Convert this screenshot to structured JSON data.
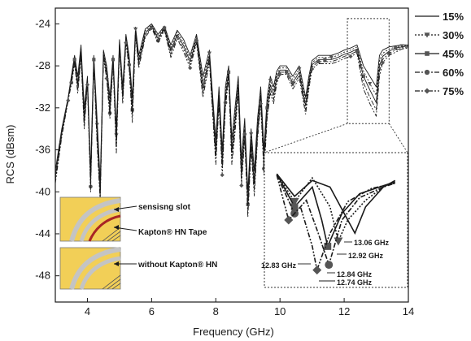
{
  "chart_data": {
    "type": "line",
    "title": "",
    "xlabel": "Frequency (GHz)",
    "ylabel": "RCS (dBsm)",
    "xlim": [
      3,
      14
    ],
    "ylim": [
      -50.5,
      -22.5
    ],
    "x_ticks": [
      4,
      6,
      8,
      10,
      12,
      14
    ],
    "y_ticks": [
      -24,
      -28,
      -32,
      -36,
      -40,
      -44,
      -48
    ],
    "grid": false,
    "legend_position": "top-right",
    "series": [
      {
        "name": "15%",
        "marker": "none",
        "dash": "solid",
        "x": [
          3.0,
          3.2,
          3.4,
          3.5,
          3.6,
          3.7,
          3.8,
          3.9,
          4.0,
          4.1,
          4.2,
          4.3,
          4.4,
          4.5,
          4.6,
          4.7,
          4.8,
          4.9,
          5.0,
          5.1,
          5.2,
          5.3,
          5.4,
          5.5,
          5.6,
          5.8,
          6.0,
          6.2,
          6.4,
          6.6,
          6.8,
          7.0,
          7.2,
          7.4,
          7.6,
          7.8,
          8.0,
          8.1,
          8.2,
          8.3,
          8.4,
          8.5,
          8.6,
          8.7,
          8.8,
          8.9,
          9.0,
          9.1,
          9.2,
          9.3,
          9.4,
          9.5,
          9.6,
          9.7,
          9.8,
          9.9,
          10.0,
          10.2,
          10.4,
          10.6,
          10.8,
          10.9,
          11.0,
          11.2,
          11.4,
          11.6,
          11.8,
          12.0,
          12.2,
          12.4,
          12.6,
          12.8,
          13.0,
          13.1,
          13.2,
          13.4,
          13.6,
          13.8,
          14.0
        ],
        "y": [
          -38,
          -34,
          -31,
          -29,
          -27,
          -29,
          -26,
          -32,
          -29,
          -38,
          -27,
          -33,
          -39,
          -26.5,
          -28,
          -31,
          -27,
          -34,
          -25.5,
          -30,
          -25,
          -27,
          -31,
          -24.3,
          -27,
          -24.5,
          -24,
          -25,
          -24.2,
          -26,
          -24.6,
          -25.5,
          -27,
          -25,
          -29,
          -26.5,
          -35,
          -30,
          -36,
          -30,
          -28,
          -35,
          -32,
          -29,
          -37,
          -33,
          -40,
          -34,
          -38,
          -33,
          -30,
          -36,
          -31,
          -29,
          -30,
          -28.5,
          -28,
          -28,
          -29,
          -28,
          -31,
          -29,
          -27.5,
          -27,
          -27,
          -27,
          -26.8,
          -26.5,
          -26.3,
          -26,
          -28,
          -29,
          -30,
          -27,
          -26.5,
          -26.2,
          -26.1,
          -26.0,
          -26.0
        ]
      },
      {
        "name": "30%",
        "marker": "triangle-down",
        "dash": "dot",
        "x": [
          3.0,
          3.2,
          3.4,
          3.5,
          3.6,
          3.7,
          3.8,
          3.9,
          4.0,
          4.1,
          4.2,
          4.3,
          4.4,
          4.5,
          4.6,
          4.7,
          4.8,
          4.9,
          5.0,
          5.1,
          5.2,
          5.3,
          5.4,
          5.5,
          5.6,
          5.8,
          6.0,
          6.2,
          6.4,
          6.6,
          6.8,
          7.0,
          7.2,
          7.4,
          7.6,
          7.8,
          8.0,
          8.1,
          8.2,
          8.3,
          8.4,
          8.5,
          8.6,
          8.7,
          8.8,
          8.9,
          9.0,
          9.1,
          9.2,
          9.3,
          9.4,
          9.5,
          9.6,
          9.7,
          9.8,
          9.9,
          10.0,
          10.2,
          10.4,
          10.6,
          10.8,
          10.9,
          11.0,
          11.2,
          11.4,
          11.6,
          11.8,
          12.0,
          12.2,
          12.4,
          12.6,
          12.8,
          13.0,
          13.1,
          13.2,
          13.4,
          13.6,
          13.8,
          14.0
        ],
        "y": [
          -38.3,
          -34.2,
          -31,
          -29.2,
          -27.2,
          -29.4,
          -26.3,
          -32.5,
          -29.2,
          -38.5,
          -27.2,
          -33.6,
          -39.5,
          -26.7,
          -28.3,
          -31.5,
          -27.2,
          -34.6,
          -25.7,
          -30.4,
          -25.2,
          -27.3,
          -31.6,
          -24.5,
          -27.3,
          -24.7,
          -24.1,
          -25.2,
          -24.3,
          -26.3,
          -24.8,
          -25.8,
          -27.3,
          -25.2,
          -29.5,
          -26.8,
          -35.6,
          -30.4,
          -36.6,
          -30.5,
          -28.3,
          -35.6,
          -32.6,
          -29.4,
          -37.6,
          -33.5,
          -40.6,
          -34.5,
          -38.6,
          -33.5,
          -30.4,
          -36.6,
          -31.5,
          -29.4,
          -30.4,
          -28.8,
          -28.2,
          -28.2,
          -29.3,
          -28.3,
          -31.4,
          -29.3,
          -27.7,
          -27.2,
          -27.2,
          -27.2,
          -27.0,
          -26.7,
          -26.5,
          -26.2,
          -28.5,
          -29.7,
          -30.8,
          -27.5,
          -26.8,
          -26.4,
          -26.2,
          -26.1,
          -26.0
        ]
      },
      {
        "name": "45%",
        "marker": "square",
        "dash": "solid",
        "x": [
          3.0,
          3.2,
          3.4,
          3.5,
          3.6,
          3.7,
          3.8,
          3.9,
          4.0,
          4.1,
          4.2,
          4.3,
          4.4,
          4.5,
          4.6,
          4.7,
          4.8,
          4.9,
          5.0,
          5.1,
          5.2,
          5.3,
          5.4,
          5.5,
          5.6,
          5.8,
          6.0,
          6.2,
          6.4,
          6.6,
          6.8,
          7.0,
          7.2,
          7.4,
          7.6,
          7.8,
          8.0,
          8.1,
          8.2,
          8.3,
          8.4,
          8.5,
          8.6,
          8.7,
          8.8,
          8.9,
          9.0,
          9.1,
          9.2,
          9.3,
          9.4,
          9.5,
          9.6,
          9.7,
          9.8,
          9.9,
          10.0,
          10.2,
          10.4,
          10.6,
          10.8,
          10.9,
          11.0,
          11.2,
          11.4,
          11.6,
          11.8,
          12.0,
          12.2,
          12.4,
          12.6,
          12.8,
          13.0,
          13.1,
          13.2,
          13.4,
          13.6,
          13.8,
          14.0
        ],
        "y": [
          -38.6,
          -34.4,
          -31.1,
          -29.4,
          -27.4,
          -29.8,
          -26.6,
          -33,
          -29.4,
          -39,
          -27.4,
          -34.2,
          -40,
          -26.9,
          -28.6,
          -32,
          -27.4,
          -35.2,
          -25.9,
          -30.8,
          -25.4,
          -27.6,
          -32.2,
          -24.7,
          -27.6,
          -24.9,
          -24.2,
          -25.4,
          -24.4,
          -26.6,
          -25,
          -26.1,
          -27.6,
          -25.4,
          -30,
          -27.1,
          -36.2,
          -30.8,
          -37.2,
          -31,
          -28.6,
          -36.2,
          -33.2,
          -29.8,
          -38.2,
          -34,
          -41.2,
          -35,
          -39.2,
          -34,
          -30.8,
          -37.2,
          -32,
          -29.8,
          -30.8,
          -29.1,
          -28.4,
          -28.4,
          -29.6,
          -28.6,
          -31.8,
          -29.6,
          -27.9,
          -27.4,
          -27.4,
          -27.4,
          -27.2,
          -26.9,
          -26.7,
          -26.4,
          -29.0,
          -30.3,
          -31.5,
          -28.0,
          -27.1,
          -26.6,
          -26.3,
          -26.2,
          -26.1
        ]
      },
      {
        "name": "60%",
        "marker": "circle",
        "dash": "dashdot",
        "x": [
          3.0,
          3.2,
          3.4,
          3.5,
          3.6,
          3.7,
          3.8,
          3.9,
          4.0,
          4.1,
          4.2,
          4.3,
          4.4,
          4.5,
          4.6,
          4.7,
          4.8,
          4.9,
          5.0,
          5.1,
          5.2,
          5.3,
          5.4,
          5.5,
          5.6,
          5.8,
          6.0,
          6.2,
          6.4,
          6.6,
          6.8,
          7.0,
          7.2,
          7.4,
          7.6,
          7.8,
          8.0,
          8.1,
          8.2,
          8.3,
          8.4,
          8.5,
          8.6,
          8.7,
          8.8,
          8.9,
          9.0,
          9.1,
          9.2,
          9.3,
          9.4,
          9.5,
          9.6,
          9.7,
          9.8,
          9.9,
          10.0,
          10.2,
          10.4,
          10.6,
          10.8,
          10.9,
          11.0,
          11.2,
          11.4,
          11.6,
          11.8,
          12.0,
          12.2,
          12.4,
          12.6,
          12.8,
          13.0,
          13.1,
          13.2,
          13.4,
          13.6,
          13.8,
          14.0
        ],
        "y": [
          -38.9,
          -34.6,
          -31.2,
          -29.6,
          -27.6,
          -30.2,
          -26.9,
          -33.5,
          -29.6,
          -39.5,
          -27.6,
          -34.8,
          -40.5,
          -27.1,
          -28.9,
          -32.5,
          -27.6,
          -35.8,
          -26.1,
          -31.2,
          -25.6,
          -27.9,
          -32.8,
          -24.9,
          -27.9,
          -25.1,
          -24.3,
          -25.6,
          -24.5,
          -26.9,
          -25.2,
          -26.4,
          -27.9,
          -25.6,
          -30.5,
          -27.4,
          -36.8,
          -31.2,
          -37.8,
          -31.5,
          -28.9,
          -36.8,
          -33.8,
          -30.2,
          -38.8,
          -34.5,
          -41.8,
          -35.5,
          -39.8,
          -34.5,
          -31.2,
          -37.8,
          -32.5,
          -30.2,
          -31.2,
          -29.4,
          -28.6,
          -28.6,
          -29.9,
          -28.9,
          -32.2,
          -29.9,
          -28.1,
          -27.6,
          -27.6,
          -27.6,
          -27.4,
          -27.1,
          -26.9,
          -26.6,
          -29.6,
          -31.0,
          -32.2,
          -28.5,
          -27.4,
          -26.8,
          -26.5,
          -26.3,
          -26.2
        ]
      },
      {
        "name": "75%",
        "marker": "diamond",
        "dash": "dashdotdot",
        "x": [
          3.0,
          3.2,
          3.4,
          3.5,
          3.6,
          3.7,
          3.8,
          3.9,
          4.0,
          4.1,
          4.2,
          4.3,
          4.4,
          4.5,
          4.6,
          4.7,
          4.8,
          4.9,
          5.0,
          5.1,
          5.2,
          5.3,
          5.4,
          5.5,
          5.6,
          5.8,
          6.0,
          6.2,
          6.4,
          6.6,
          6.8,
          7.0,
          7.2,
          7.4,
          7.6,
          7.8,
          8.0,
          8.1,
          8.2,
          8.3,
          8.4,
          8.5,
          8.6,
          8.7,
          8.8,
          8.9,
          9.0,
          9.1,
          9.2,
          9.3,
          9.4,
          9.5,
          9.6,
          9.7,
          9.8,
          9.9,
          10.0,
          10.2,
          10.4,
          10.6,
          10.8,
          10.9,
          11.0,
          11.2,
          11.4,
          11.6,
          11.8,
          12.0,
          12.2,
          12.4,
          12.6,
          12.8,
          13.0,
          13.1,
          13.2,
          13.4,
          13.6,
          13.8,
          14.0
        ],
        "y": [
          -39.2,
          -34.8,
          -31.3,
          -29.8,
          -27.8,
          -30.6,
          -27.2,
          -34,
          -29.8,
          -40,
          -27.8,
          -35.4,
          -41,
          -27.3,
          -29.2,
          -33,
          -27.8,
          -36.4,
          -26.3,
          -31.6,
          -25.8,
          -28.2,
          -33.4,
          -25.1,
          -28.2,
          -25.3,
          -24.4,
          -25.8,
          -24.6,
          -27.2,
          -25.4,
          -26.7,
          -28.2,
          -25.8,
          -31,
          -27.7,
          -37.4,
          -31.6,
          -38.4,
          -32,
          -29.2,
          -37.4,
          -34.4,
          -30.6,
          -39.4,
          -35,
          -42.4,
          -36,
          -40.4,
          -35,
          -31.6,
          -38.4,
          -33,
          -30.6,
          -31.6,
          -29.7,
          -28.8,
          -28.8,
          -30.2,
          -29.2,
          -32.6,
          -30.2,
          -28.3,
          -27.8,
          -27.8,
          -27.8,
          -27.6,
          -27.3,
          -27.1,
          -26.8,
          -30.2,
          -31.6,
          -32.8,
          -29.0,
          -27.7,
          -27.0,
          -26.7,
          -26.4,
          -26.3
        ]
      }
    ],
    "zoom_inset": {
      "source_region": {
        "x": [
          12.1,
          13.4
        ],
        "y": [
          -33.5,
          -23.5
        ]
      },
      "annotations": [
        "13.06 GHz",
        "12.92 GHz",
        "12.83 GHz",
        "12.84 GHz",
        "12.74 GHz"
      ],
      "series": [
        {
          "name": "15%",
          "x": [
            12.4,
            12.55,
            12.7,
            12.85,
            13.0,
            13.06,
            13.15,
            13.3,
            13.4
          ],
          "y": [
            -25.5,
            -27.2,
            -26.0,
            -26.5,
            -29.0,
            -30.0,
            -28.0,
            -26.5,
            -26.0
          ]
        },
        {
          "name": "30%",
          "x": [
            12.4,
            12.55,
            12.7,
            12.85,
            12.92,
            13.0,
            13.15,
            13.3,
            13.4
          ],
          "y": [
            -25.5,
            -27.6,
            -25.8,
            -28.0,
            -30.6,
            -29.0,
            -27.5,
            -26.5,
            -26.1
          ]
        },
        {
          "name": "45%",
          "x": [
            12.4,
            12.55,
            12.7,
            12.78,
            12.83,
            12.95,
            13.1,
            13.3,
            13.4
          ],
          "y": [
            -25.5,
            -28.0,
            -26.5,
            -29.0,
            -31.0,
            -28.5,
            -27.0,
            -26.4,
            -26.1
          ]
        },
        {
          "name": "60%",
          "x": [
            12.4,
            12.55,
            12.65,
            12.75,
            12.84,
            12.95,
            13.1,
            13.3,
            13.4
          ],
          "y": [
            -25.6,
            -28.5,
            -27.5,
            -30.0,
            -32.4,
            -29.0,
            -27.3,
            -26.5,
            -26.2
          ]
        },
        {
          "name": "75%",
          "x": [
            12.4,
            12.5,
            12.6,
            12.7,
            12.74,
            12.85,
            13.0,
            13.2,
            13.4
          ],
          "y": [
            -25.6,
            -29.0,
            -28.0,
            -31.0,
            -32.8,
            -30.0,
            -27.6,
            -26.6,
            -26.2
          ]
        }
      ]
    },
    "sensor_insets": [
      {
        "label": "sensisng slot"
      },
      {
        "label": "Kapton® HN Tape"
      },
      {
        "label": "without Kapton® HN"
      }
    ]
  },
  "colors": {
    "axis": "#1a1a1a",
    "lines": "#1a1a1a",
    "markers": "#555555",
    "inset_background": "#f2cf57",
    "inset_slot": "#c4c4c4",
    "kapton_tape": "#a82525"
  }
}
